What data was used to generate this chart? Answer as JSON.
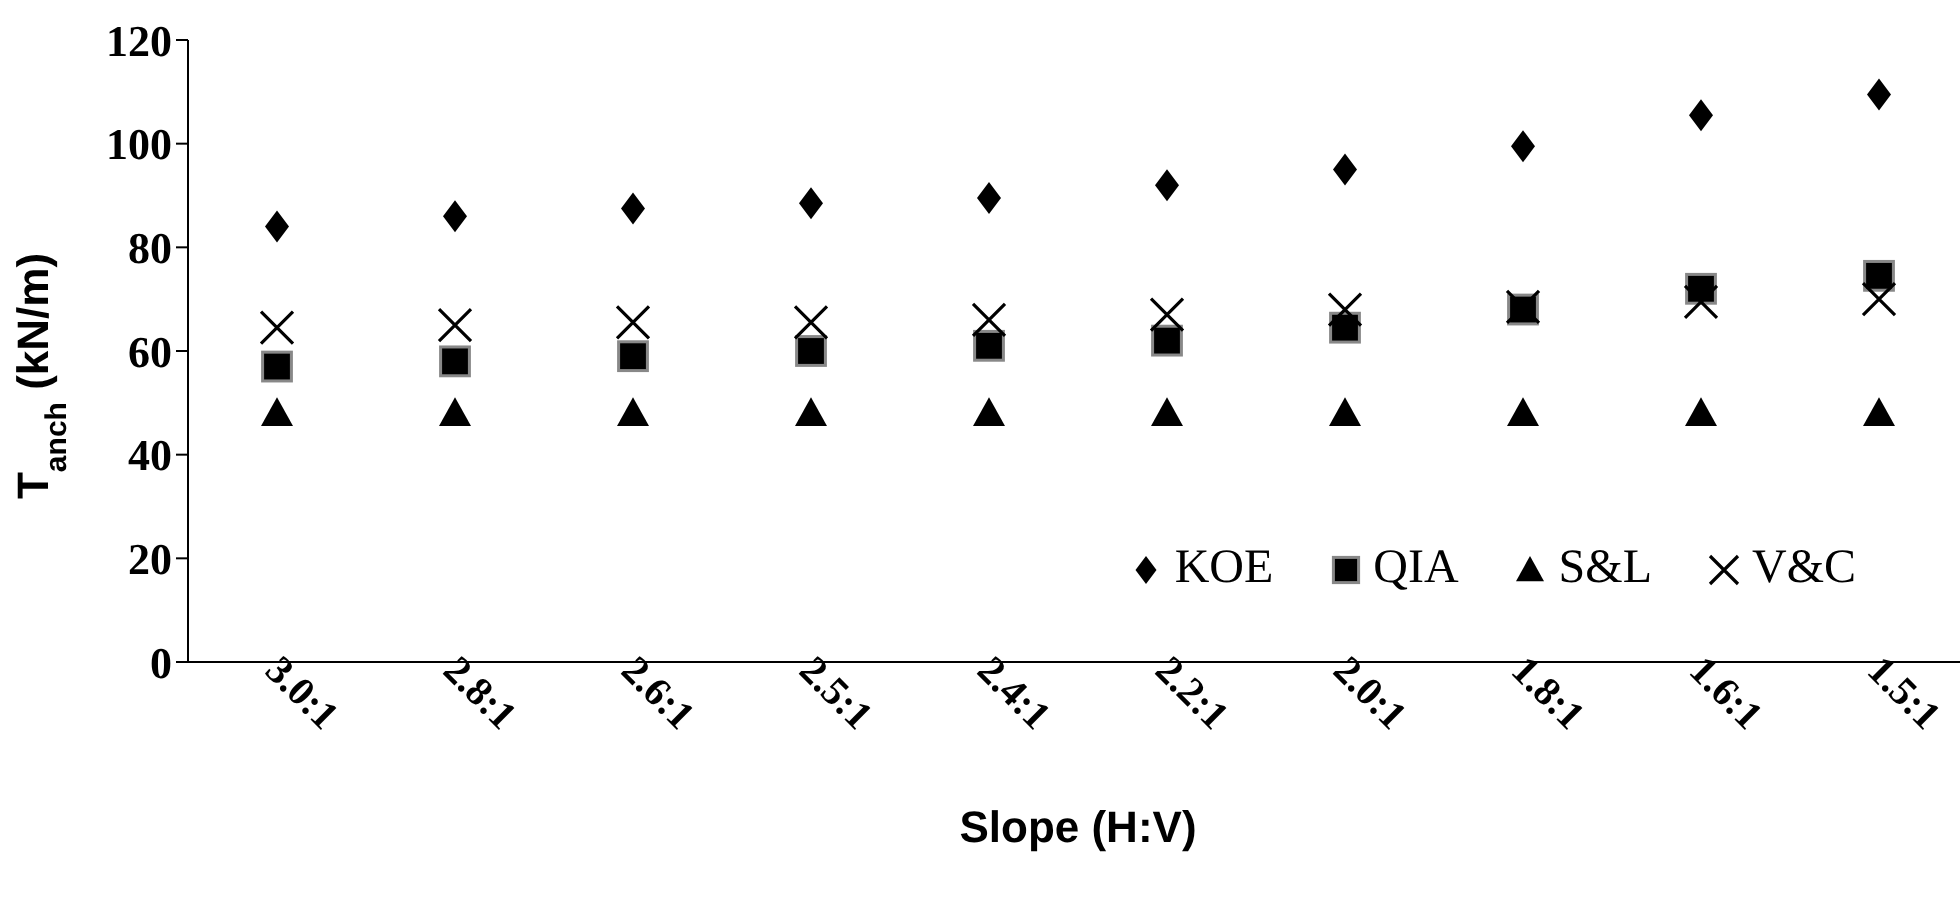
{
  "chart_data": {
    "type": "scatter",
    "xlabel": "Slope (H:V)",
    "ylabel": "T$_{anch}$  (kN/m)",
    "categories": [
      "3.0:1",
      "2.8:1",
      "2.6:1",
      "2.5:1",
      "2.4:1",
      "2.2:1",
      "2.0:1",
      "1.8:1",
      "1.6:1",
      "1.5:1"
    ],
    "series": [
      {
        "name": "KOE",
        "color": "#000000",
        "marker": "diamond",
        "values": [
          84,
          86,
          87.5,
          88.5,
          89.5,
          92,
          95,
          99.5,
          105.5,
          109.5
        ]
      },
      {
        "name": "QIA",
        "color": "#000000",
        "marker": "square",
        "values": [
          57,
          58,
          59,
          60,
          61,
          62,
          64.5,
          68,
          72,
          74.5
        ]
      },
      {
        "name": "S&L",
        "color": "#000000",
        "marker": "triangle",
        "values": [
          48,
          48,
          48,
          48,
          48,
          48,
          48,
          48,
          48,
          48
        ]
      },
      {
        "name": "V&C",
        "color": "#000000",
        "marker": "cross",
        "values": [
          64.5,
          65,
          65.5,
          65.5,
          66,
          67,
          68,
          68.5,
          69.5,
          70
        ]
      }
    ],
    "ylim": [
      0,
      120
    ],
    "yticks": [
      0,
      20,
      40,
      60,
      80,
      100,
      120
    ],
    "grid": false,
    "legend": "bottom right"
  }
}
